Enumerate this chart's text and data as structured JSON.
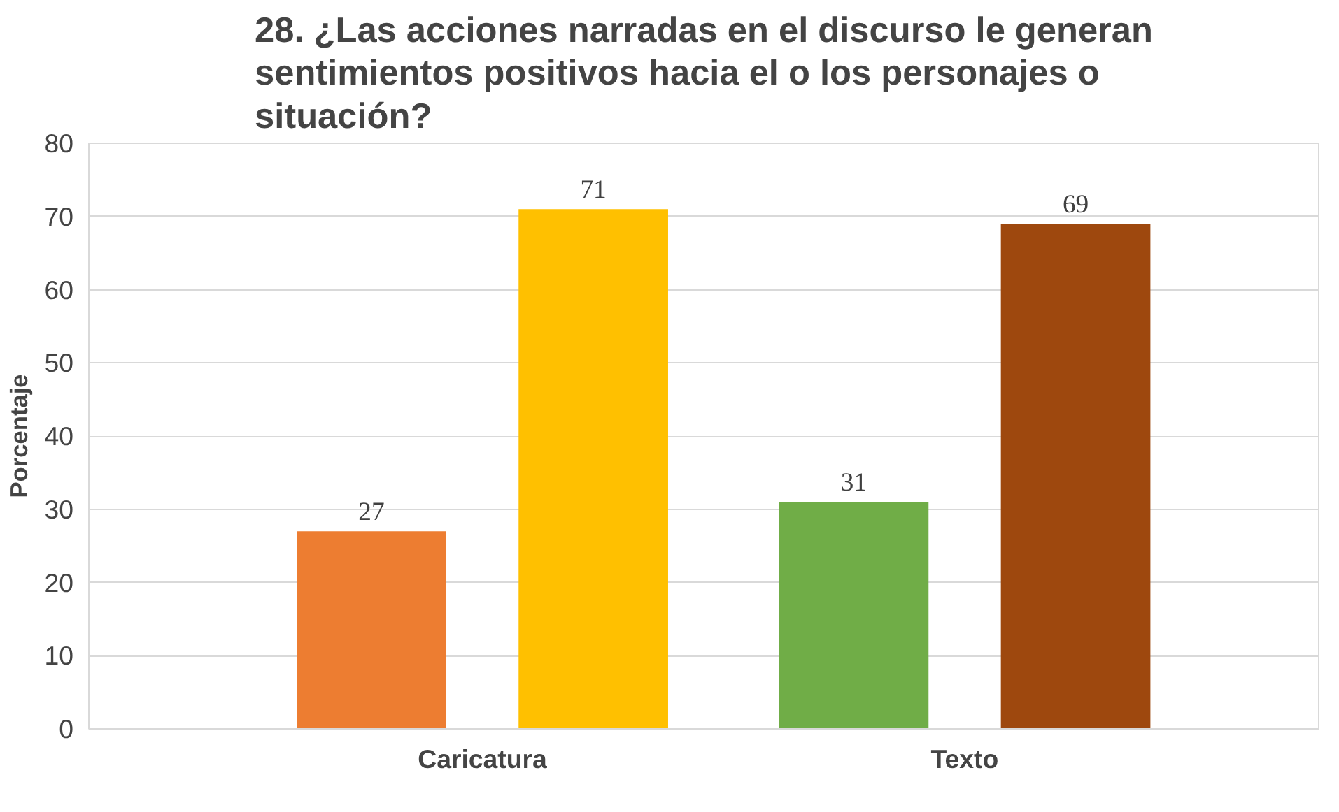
{
  "chart_data": {
    "type": "bar",
    "title": "28. ¿Las acciones narradas en el discurso le generan sentimientos positivos hacia el o los personajes o situación?",
    "ylabel": "Porcentaje",
    "categories": [
      "Caricatura",
      "Texto"
    ],
    "series": [
      {
        "colors": [
          "#ed7d31",
          "#70ad47"
        ],
        "values": [
          27,
          31
        ]
      },
      {
        "colors": [
          "#ffc000",
          "#9e480e"
        ],
        "values": [
          71,
          69
        ]
      }
    ],
    "ylim": [
      0,
      80
    ],
    "yticks": [
      0,
      10,
      20,
      30,
      40,
      50,
      60,
      70,
      80
    ],
    "grid": "y",
    "data_labels": true
  }
}
